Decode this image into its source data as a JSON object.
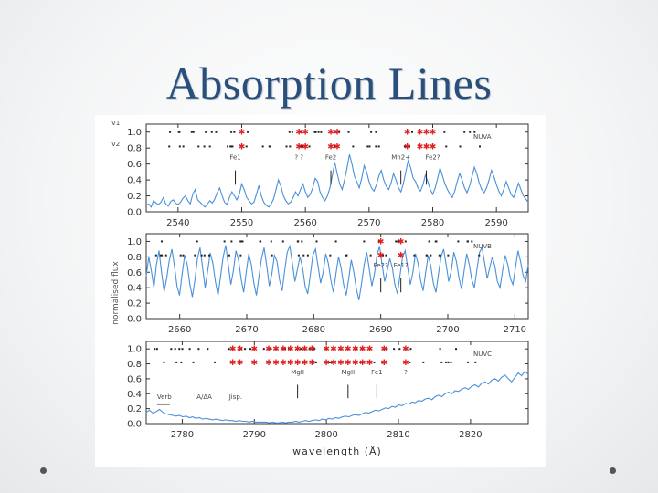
{
  "slide": {
    "title": "Absorption Lines"
  },
  "chart_data": {
    "type": "line",
    "ylabel": "normalised flux",
    "xlabel": "wavelength (Å)",
    "row_labels": [
      "V1",
      "V2"
    ],
    "line_color": "#4a90d9",
    "marker_color_red": "#e02020",
    "marker_color_black": "#222222",
    "panels": [
      {
        "id": "NUVA",
        "label": "NUVA",
        "xlim": [
          2535,
          2595
        ],
        "ylim": [
          0,
          1.1
        ],
        "xticks": [
          2540,
          2550,
          2560,
          2570,
          2580,
          2590
        ],
        "yticks": [
          "0.0",
          "0.2",
          "0.4",
          "0.6",
          "0.8",
          "1.0"
        ],
        "ion_labels": [
          {
            "text": "Fe1",
            "x": 2549
          },
          {
            "text": "? ?",
            "x": 2559
          },
          {
            "text": "Fe2",
            "x": 2564
          },
          {
            "text": "Mn2+",
            "x": 2575
          },
          {
            "text": "Fe2?",
            "x": 2580
          }
        ],
        "red_marks": [
          2550,
          2559,
          2560,
          2564,
          2565,
          2576,
          2578,
          2579,
          2580
        ],
        "feature_lines": [
          2549,
          2564,
          2575,
          2579
        ],
        "flux": [
          0.08,
          0.1,
          0.06,
          0.14,
          0.11,
          0.09,
          0.12,
          0.18,
          0.1,
          0.07,
          0.13,
          0.15,
          0.11,
          0.09,
          0.12,
          0.17,
          0.2,
          0.14,
          0.1,
          0.22,
          0.28,
          0.15,
          0.12,
          0.09,
          0.06,
          0.1,
          0.14,
          0.11,
          0.16,
          0.24,
          0.3,
          0.2,
          0.12,
          0.09,
          0.18,
          0.25,
          0.2,
          0.15,
          0.22,
          0.35,
          0.28,
          0.18,
          0.14,
          0.1,
          0.12,
          0.22,
          0.33,
          0.2,
          0.12,
          0.08,
          0.06,
          0.1,
          0.16,
          0.28,
          0.4,
          0.32,
          0.2,
          0.14,
          0.1,
          0.12,
          0.18,
          0.25,
          0.2,
          0.28,
          0.35,
          0.25,
          0.18,
          0.22,
          0.3,
          0.42,
          0.38,
          0.25,
          0.18,
          0.14,
          0.2,
          0.3,
          0.45,
          0.62,
          0.48,
          0.35,
          0.28,
          0.4,
          0.55,
          0.72,
          0.6,
          0.45,
          0.38,
          0.3,
          0.42,
          0.58,
          0.5,
          0.38,
          0.3,
          0.26,
          0.34,
          0.45,
          0.52,
          0.4,
          0.32,
          0.28,
          0.36,
          0.48,
          0.4,
          0.3,
          0.25,
          0.35,
          0.5,
          0.65,
          0.55,
          0.42,
          0.38,
          0.3,
          0.26,
          0.34,
          0.46,
          0.38,
          0.28,
          0.22,
          0.3,
          0.42,
          0.55,
          0.45,
          0.35,
          0.28,
          0.22,
          0.18,
          0.26,
          0.38,
          0.48,
          0.4,
          0.3,
          0.24,
          0.32,
          0.44,
          0.56,
          0.48,
          0.36,
          0.28,
          0.24,
          0.3,
          0.4,
          0.52,
          0.44,
          0.34,
          0.26,
          0.2,
          0.28,
          0.38,
          0.3,
          0.22,
          0.18,
          0.26,
          0.36,
          0.28,
          0.2,
          0.16,
          0.12
        ]
      },
      {
        "id": "NUVB",
        "label": "NUVB",
        "xlim": [
          2655,
          2712
        ],
        "ylim": [
          0,
          1.1
        ],
        "xticks": [
          2660,
          2670,
          2680,
          2690,
          2700,
          2710
        ],
        "yticks": [
          "0.0",
          "0.2",
          "0.4",
          "0.6",
          "0.8",
          "1.0"
        ],
        "ion_labels": [
          {
            "text": "Fe2?",
            "x": 2690
          },
          {
            "text": "Fe1?",
            "x": 2693
          }
        ],
        "red_marks": [
          2690,
          2693
        ],
        "feature_lines": [
          2690,
          2693
        ],
        "flux": [
          0.55,
          0.8,
          0.62,
          0.4,
          0.7,
          0.88,
          0.6,
          0.35,
          0.52,
          0.75,
          0.9,
          0.68,
          0.42,
          0.3,
          0.58,
          0.82,
          0.7,
          0.45,
          0.28,
          0.5,
          0.78,
          0.92,
          0.66,
          0.4,
          0.62,
          0.85,
          0.72,
          0.48,
          0.3,
          0.55,
          0.8,
          0.95,
          0.7,
          0.44,
          0.62,
          0.88,
          0.76,
          0.52,
          0.34,
          0.6,
          0.84,
          0.7,
          0.46,
          0.3,
          0.55,
          0.78,
          0.92,
          0.68,
          0.42,
          0.58,
          0.82,
          0.74,
          0.5,
          0.36,
          0.62,
          0.86,
          0.94,
          0.72,
          0.48,
          0.64,
          0.8,
          0.66,
          0.42,
          0.32,
          0.56,
          0.82,
          0.9,
          0.68,
          0.46,
          0.6,
          0.84,
          0.72,
          0.5,
          0.34,
          0.58,
          0.8,
          0.66,
          0.44,
          0.3,
          0.52,
          0.76,
          0.6,
          0.38,
          0.24,
          0.46,
          0.7,
          0.86,
          0.64,
          0.42,
          0.58,
          0.82,
          0.94,
          0.7,
          0.48,
          0.62,
          0.78,
          0.66,
          0.44,
          0.32,
          0.56,
          0.8,
          0.88,
          0.66,
          0.44,
          0.6,
          0.84,
          0.72,
          0.5,
          0.36,
          0.6,
          0.82,
          0.68,
          0.46,
          0.34,
          0.58,
          0.8,
          0.9,
          0.7,
          0.48,
          0.62,
          0.86,
          0.74,
          0.52,
          0.38,
          0.62,
          0.84,
          0.7,
          0.5,
          0.4,
          0.64,
          0.86,
          0.92,
          0.72,
          0.52,
          0.66,
          0.8,
          0.68,
          0.48,
          0.4,
          0.62,
          0.82,
          0.7,
          0.52,
          0.44,
          0.66,
          0.88,
          0.74,
          0.56,
          0.48,
          0.7
        ]
      },
      {
        "id": "NUVC",
        "label": "NUVC",
        "xlim": [
          2775,
          2828
        ],
        "ylim": [
          0,
          1.1
        ],
        "xticks": [
          2780,
          2790,
          2800,
          2810,
          2820
        ],
        "yticks": [
          "0.0",
          "0.2",
          "0.4",
          "0.6",
          "0.8",
          "1.0"
        ],
        "ion_labels": [
          {
            "text": "MgII",
            "x": 2796
          },
          {
            "text": "MgII",
            "x": 2803
          },
          {
            "text": "Fe1",
            "x": 2807
          },
          {
            "text": "?",
            "x": 2811
          }
        ],
        "legend_items": [
          "Verb",
          "A/ΔA",
          "Jisp."
        ],
        "red_marks": [
          2787,
          2788,
          2790,
          2792,
          2793,
          2794,
          2795,
          2796,
          2797,
          2798,
          2800,
          2801,
          2802,
          2803,
          2804,
          2805,
          2806,
          2808,
          2811
        ],
        "feature_lines": [
          2796,
          2803,
          2807
        ],
        "flux": [
          0.15,
          0.18,
          0.14,
          0.16,
          0.19,
          0.15,
          0.13,
          0.12,
          0.11,
          0.1,
          0.11,
          0.09,
          0.1,
          0.08,
          0.09,
          0.07,
          0.08,
          0.06,
          0.07,
          0.06,
          0.05,
          0.06,
          0.05,
          0.04,
          0.05,
          0.04,
          0.04,
          0.03,
          0.04,
          0.03,
          0.03,
          0.02,
          0.03,
          0.02,
          0.02,
          0.02,
          0.02,
          0.01,
          0.02,
          0.01,
          0.01,
          0.02,
          0.01,
          0.02,
          0.02,
          0.03,
          0.02,
          0.03,
          0.04,
          0.03,
          0.04,
          0.05,
          0.04,
          0.06,
          0.05,
          0.07,
          0.06,
          0.08,
          0.07,
          0.09,
          0.1,
          0.09,
          0.11,
          0.12,
          0.11,
          0.13,
          0.15,
          0.14,
          0.16,
          0.18,
          0.17,
          0.19,
          0.21,
          0.2,
          0.23,
          0.22,
          0.25,
          0.24,
          0.27,
          0.26,
          0.29,
          0.28,
          0.31,
          0.3,
          0.33,
          0.34,
          0.32,
          0.36,
          0.38,
          0.36,
          0.4,
          0.42,
          0.4,
          0.44,
          0.43,
          0.46,
          0.48,
          0.46,
          0.5,
          0.52,
          0.49,
          0.54,
          0.56,
          0.53,
          0.58,
          0.6,
          0.57,
          0.62,
          0.65,
          0.6,
          0.56,
          0.62,
          0.68,
          0.64,
          0.7,
          0.66
        ]
      }
    ]
  }
}
